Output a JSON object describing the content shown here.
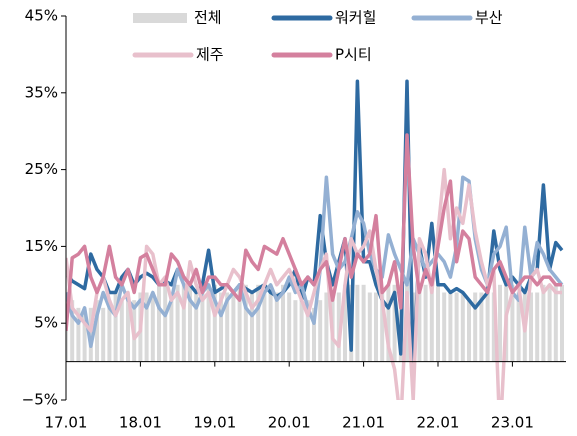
{
  "chart_data": {
    "type": "line",
    "categories": [
      "17.01",
      null,
      null,
      null,
      null,
      null,
      null,
      null,
      null,
      null,
      null,
      null,
      "18.01",
      null,
      null,
      null,
      null,
      null,
      null,
      null,
      null,
      null,
      null,
      null,
      "19.01",
      null,
      null,
      null,
      null,
      null,
      null,
      null,
      null,
      null,
      null,
      null,
      "20.01",
      null,
      null,
      null,
      null,
      null,
      null,
      null,
      null,
      null,
      null,
      null,
      "21.01",
      null,
      null,
      null,
      null,
      null,
      null,
      null,
      null,
      null,
      null,
      null,
      "22.01",
      null,
      null,
      null,
      null,
      null,
      null,
      null,
      null,
      null,
      null,
      null,
      "23.01",
      null,
      null,
      null,
      null,
      null,
      null,
      null,
      null
    ],
    "ylim": [
      -5,
      45
    ],
    "yticks": [
      {
        "value": -5,
        "label": "−5%"
      },
      {
        "value": 5,
        "label": "5%"
      },
      {
        "value": 15,
        "label": "15%"
      },
      {
        "value": 25,
        "label": "25%"
      },
      {
        "value": 35,
        "label": "35%"
      },
      {
        "value": 45,
        "label": "45%"
      }
    ],
    "series": [
      {
        "name": "전체",
        "type": "bar",
        "color": "#d9d9d9",
        "values": [
          7,
          8,
          7,
          6,
          7,
          8,
          7,
          8,
          9,
          8,
          8,
          8,
          9,
          9,
          9,
          10,
          10,
          9,
          10,
          10,
          10,
          9,
          10,
          10,
          10,
          9,
          9,
          9,
          10,
          10,
          9,
          10,
          9,
          9,
          9,
          10,
          9,
          8,
          8,
          8,
          7,
          8,
          9,
          9,
          9,
          10,
          10,
          10,
          10,
          9,
          9,
          9,
          10,
          10,
          10,
          10,
          9,
          10,
          10,
          10,
          10,
          9,
          9,
          9,
          9,
          8,
          9,
          9,
          10,
          9,
          10,
          10,
          10,
          9,
          9,
          9,
          9,
          10,
          10,
          10,
          10
        ]
      },
      {
        "name": "워커힐",
        "color": "#2e6aa1",
        "values": [
          11.5,
          10.5,
          10,
          9.5,
          14,
          12,
          11,
          9,
          9,
          11,
          12,
          10,
          11,
          11.5,
          11,
          10,
          10.5,
          10,
          12,
          11,
          10,
          9,
          10,
          14.5,
          9,
          9.5,
          10,
          9,
          10,
          9.5,
          9,
          9.5,
          10,
          9,
          8.5,
          9,
          10,
          12,
          8,
          11,
          10,
          19,
          13,
          10,
          13,
          16,
          1.5,
          36.5,
          13,
          13,
          10,
          8,
          7,
          9,
          1,
          36.5,
          -1,
          15,
          11,
          18,
          10,
          10,
          9,
          9.5,
          9,
          8,
          7,
          8,
          9,
          17,
          12,
          10,
          11,
          10,
          9,
          11,
          12,
          23,
          12,
          15.5,
          14.5
        ]
      },
      {
        "name": "부산",
        "color": "#94b0d3",
        "values": [
          9,
          6,
          5,
          7,
          2,
          6,
          9,
          7,
          6,
          10,
          8,
          7,
          8,
          7,
          9,
          7,
          6,
          8,
          12,
          10,
          8,
          7,
          9,
          10,
          8,
          6,
          8,
          9,
          10,
          7,
          6,
          7,
          9,
          10,
          8,
          9,
          11,
          9,
          10,
          7,
          5,
          12,
          24,
          14,
          12,
          13,
          16,
          19.5,
          18,
          14,
          12,
          11,
          16.5,
          14,
          12,
          10,
          16,
          14,
          12,
          13,
          14,
          13,
          11,
          15,
          24,
          23.5,
          16,
          12,
          10,
          14,
          15,
          17.5,
          9,
          8,
          17.5,
          11,
          15.5,
          14,
          12,
          11,
          10
        ]
      },
      {
        "name": "제주",
        "color": "#e8c0cc",
        "values": [
          13.5,
          7,
          6,
          5,
          4,
          9,
          11,
          8,
          6,
          8,
          9,
          3,
          4,
          15,
          14,
          10,
          11,
          8,
          9,
          7,
          13,
          10,
          8,
          9,
          6,
          8,
          10,
          12,
          11,
          9,
          7,
          8,
          10,
          12,
          10,
          11,
          12,
          10,
          8,
          6,
          9,
          12,
          14,
          3,
          2,
          10,
          16,
          14,
          15,
          17,
          12,
          8,
          2,
          -1,
          -8,
          9,
          -5,
          16,
          14,
          9,
          17,
          25,
          16,
          20,
          18,
          23,
          17,
          13,
          10,
          12,
          -10,
          6,
          9,
          10,
          4,
          11,
          12,
          9,
          10,
          9,
          9
        ]
      },
      {
        "name": "P시티",
        "color": "#d4809e",
        "values": [
          4,
          13.5,
          14,
          15,
          11,
          9,
          11,
          15,
          11,
          10,
          12,
          9,
          13.5,
          14,
          12,
          10,
          10,
          14,
          13,
          11,
          10,
          12,
          9,
          11,
          11,
          10,
          10,
          9,
          8,
          14.5,
          13,
          12,
          15,
          14.5,
          14,
          16,
          14,
          12,
          10,
          11,
          10,
          12,
          13,
          8,
          12,
          16,
          11,
          14,
          13,
          14,
          19,
          9,
          10,
          13,
          7,
          29.5,
          15,
          9,
          12,
          10,
          15,
          20,
          23.5,
          13,
          17,
          16,
          11,
          10,
          9,
          12,
          13,
          11,
          9,
          10,
          11,
          11,
          10,
          11,
          11,
          10,
          10
        ]
      }
    ]
  }
}
